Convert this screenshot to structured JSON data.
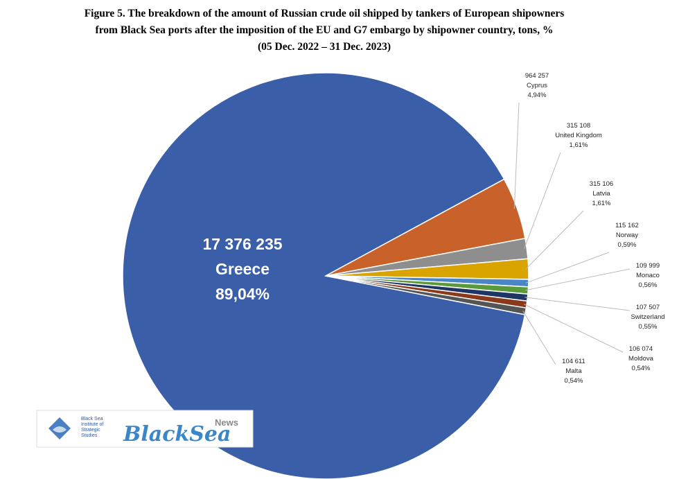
{
  "chart_data": {
    "type": "pie",
    "title": [
      "Figure 5. The breakdown of the amount of Russian crude oil shipped by tankers of European shipowners",
      "from Black Sea ports after the imposition of the EU and G7 embargo by shipowner country, tons, %",
      "(05 Dec. 2022 – 31 Dec. 2023)"
    ],
    "categories": [
      "Greece",
      "Cyprus",
      "United Kingdom",
      "Latvia",
      "Norway",
      "Monaco",
      "Switzerland",
      "Moldova",
      "Malta"
    ],
    "values": [
      17376235,
      964257,
      315108,
      315106,
      115162,
      109999,
      107507,
      106074,
      104611
    ],
    "value_labels": [
      "17 376 235",
      "964 257",
      "315 108",
      "315 106",
      "115 162",
      "109 999",
      "107 507",
      "106 074",
      "104 611"
    ],
    "shares": [
      89.04,
      4.94,
      1.61,
      1.61,
      0.59,
      0.56,
      0.55,
      0.54,
      0.54
    ],
    "share_labels": [
      "89,04%",
      "4,94%",
      "1,61%",
      "1,61%",
      "0,59%",
      "0,56%",
      "0,55%",
      "0,54%",
      "0,54%"
    ],
    "colors": [
      "#3a5ea8",
      "#c8622a",
      "#8e8e8e",
      "#d9a300",
      "#4a86c5",
      "#5a9a3a",
      "#1f3564",
      "#8a3a1a",
      "#555555"
    ],
    "logo": {
      "institute": [
        "Black Sea",
        "Institute of",
        "Strategic",
        "Studies"
      ],
      "brand": "BlackSea",
      "brand_suffix": "News"
    }
  }
}
